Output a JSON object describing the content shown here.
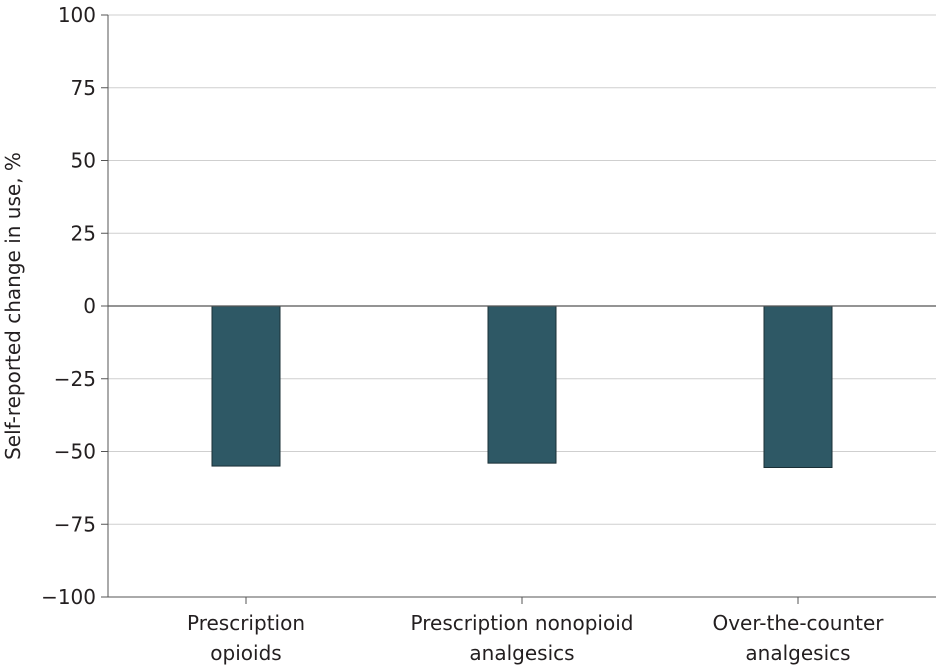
{
  "chart_data": {
    "type": "bar",
    "title": "",
    "xlabel": "",
    "ylabel": "Self-reported change in use, %",
    "ylim": [
      -100,
      100
    ],
    "yticks": [
      100,
      75,
      50,
      25,
      0,
      -25,
      -50,
      -75,
      -100
    ],
    "ytick_labels": [
      "100",
      "75",
      "50",
      "25",
      "0",
      "−25",
      "−50",
      "−75",
      "−100"
    ],
    "categories": [
      [
        "Prescription",
        "opioids"
      ],
      [
        "Prescription nonopioid",
        "analgesics"
      ],
      [
        "Over-the-counter",
        "analgesics"
      ]
    ],
    "values": [
      -55,
      -54,
      -55.5
    ],
    "grid": true,
    "bar_color": "#2e5865"
  }
}
